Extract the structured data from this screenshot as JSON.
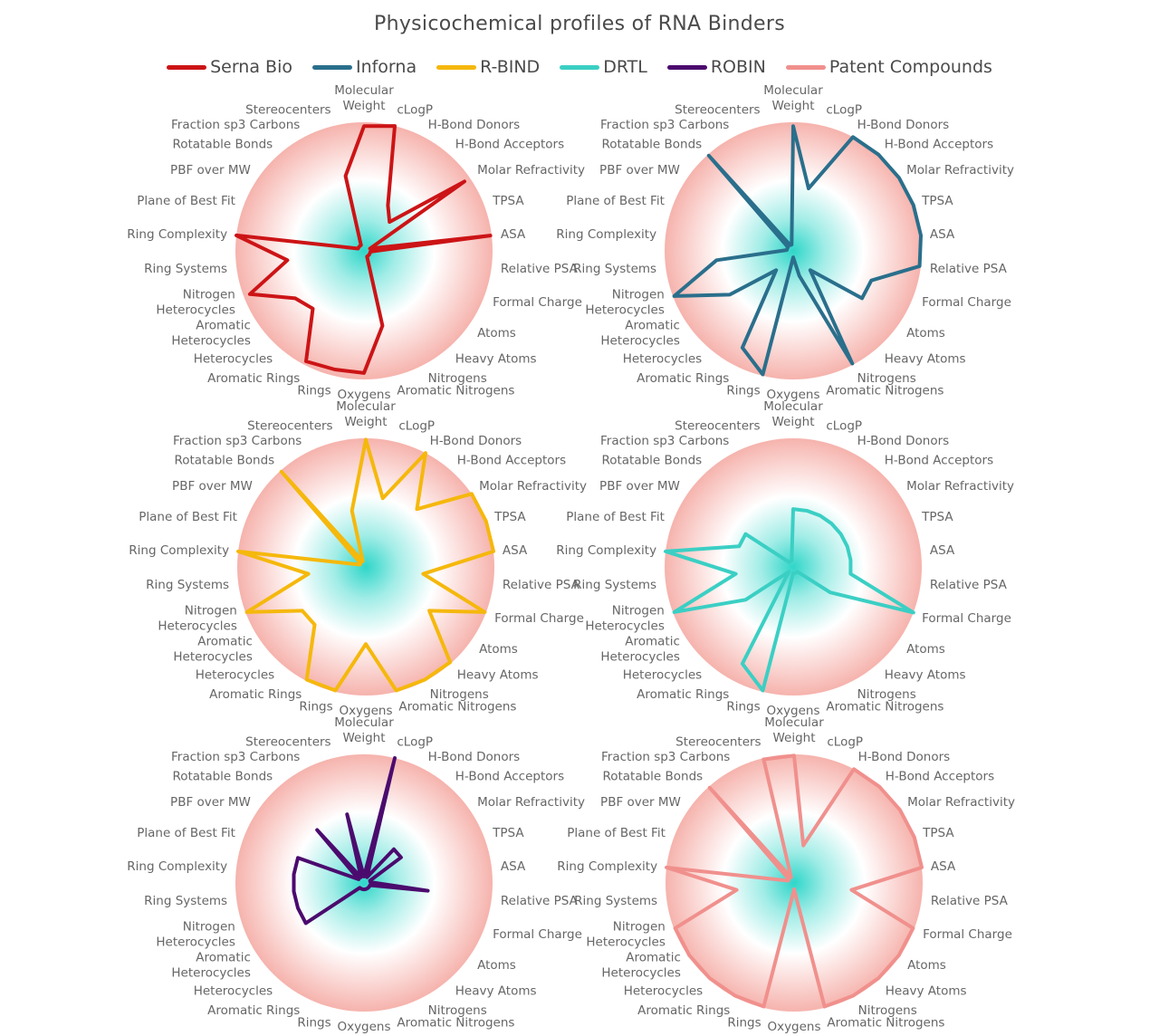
{
  "title": "Physicochemical profiles of RNA Binders",
  "colors": {
    "bg_outer": "#f6b3ad",
    "bg_inner": "#ffffff",
    "center_glow": "#2fd6c9"
  },
  "chart_data": {
    "type": "radar",
    "axes": [
      "Molecular Weight",
      "cLogP",
      "H-Bond Donors",
      "H-Bond Acceptors",
      "Molar Refractivity",
      "TPSA",
      "ASA",
      "Relative PSA",
      "Formal Charge",
      "Atoms",
      "Heavy Atoms",
      "Nitrogens",
      "Aromatic Nitrogens",
      "Oxygens",
      "Rings",
      "Aromatic Rings",
      "Heterocycles",
      "Aromatic Heterocycles",
      "Nitrogen Heterocycles",
      "Ring Systems",
      "Ring Complexity",
      "Plane of Best Fit",
      "PBF over MW",
      "Rotatable Bonds",
      "Fraction sp3 Carbons",
      "Stereocenters"
    ],
    "rlim": [
      0,
      1
    ],
    "series": [
      {
        "name": "Serna Bio",
        "color": "#cc1416",
        "values": [
          0.97,
          1.0,
          0.4,
          0.3,
          0.95,
          0.05,
          0.99,
          0.05,
          0.05,
          0.05,
          0.05,
          0.05,
          0.6,
          0.95,
          0.95,
          0.97,
          0.6,
          0.65,
          0.95,
          0.6,
          1.0,
          0.05,
          0.05,
          0.05,
          0.05,
          0.6
        ]
      },
      {
        "name": "Inforna",
        "color": "#2a6f8c",
        "values": [
          0.97,
          0.5,
          1.0,
          1.0,
          1.0,
          1.0,
          1.0,
          0.99,
          0.65,
          0.65,
          0.2,
          0.99,
          0.2,
          0.05,
          0.99,
          0.85,
          0.2,
          0.6,
          0.99,
          0.6,
          0.05,
          0.05,
          0.05,
          0.99,
          0.05,
          0.05
        ]
      },
      {
        "name": "R-BIND",
        "color": "#f5b80c",
        "values": [
          0.99,
          0.55,
          1.0,
          0.6,
          1.0,
          1.0,
          1.0,
          0.45,
          0.99,
          0.6,
          0.99,
          0.99,
          0.99,
          0.6,
          0.99,
          0.99,
          0.6,
          0.6,
          0.99,
          0.45,
          1.0,
          0.05,
          0.05,
          0.99,
          0.05,
          0.45
        ]
      },
      {
        "name": "DRTL",
        "color": "#3bcfc4",
        "values": [
          0.45,
          0.45,
          0.45,
          0.45,
          0.45,
          0.45,
          0.45,
          0.45,
          1.0,
          0.35,
          0.05,
          0.05,
          0.05,
          0.05,
          0.99,
          0.85,
          0.05,
          0.45,
          0.99,
          0.45,
          1.0,
          0.45,
          0.45,
          0.05,
          0.05,
          0.05
        ]
      },
      {
        "name": "ROBIN",
        "color": "#4b0b6e",
        "values": [
          0.05,
          1.0,
          0.05,
          0.35,
          0.35,
          0.05,
          0.05,
          0.5,
          0.05,
          0.05,
          0.05,
          0.05,
          0.05,
          0.05,
          0.05,
          0.05,
          0.05,
          0.55,
          0.55,
          0.55,
          0.55,
          0.55,
          0.05,
          0.55,
          0.05,
          0.55
        ]
      },
      {
        "name": "Patent Compounds",
        "color": "#f0908d",
        "values": [
          0.99,
          0.3,
          1.0,
          1.0,
          1.0,
          1.0,
          1.0,
          0.45,
          0.99,
          0.99,
          0.99,
          0.99,
          0.99,
          0.05,
          0.99,
          0.99,
          0.99,
          0.99,
          0.99,
          0.45,
          1.0,
          0.05,
          0.05,
          0.99,
          0.05,
          0.99
        ]
      }
    ]
  }
}
